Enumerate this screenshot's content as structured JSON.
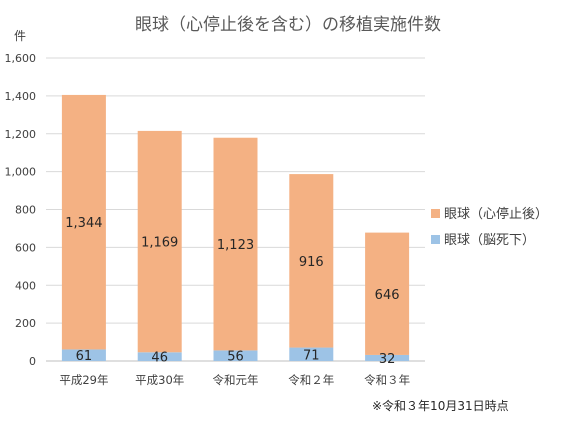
{
  "chart_data": {
    "type": "bar",
    "stacked": true,
    "title": "眼球（心停止後を含む）の移植実施件数",
    "ylabel": "件",
    "ylim": [
      0,
      1600
    ],
    "yticks": [
      0,
      200,
      400,
      600,
      800,
      1000,
      1200,
      1400,
      1600
    ],
    "ytick_labels": [
      "0",
      "200",
      "400",
      "600",
      "800",
      "1,000",
      "1,200",
      "1,400",
      "1,600"
    ],
    "categories": [
      "平成29年",
      "平成30年",
      "令和元年",
      "令和２年",
      "令和３年"
    ],
    "series": [
      {
        "name": "眼球（脳死下）",
        "color": "#9dc3e6",
        "values": [
          61,
          46,
          56,
          71,
          32
        ],
        "labels": [
          "61",
          "46",
          "56",
          "71",
          "32"
        ]
      },
      {
        "name": "眼球（心停止後）",
        "color": "#f4b183",
        "values": [
          1344,
          1169,
          1123,
          916,
          646
        ],
        "labels": [
          "1,344",
          "1,169",
          "1,123",
          "916",
          "646"
        ]
      }
    ],
    "legend": {
      "placement": "right",
      "order": [
        "眼球（心停止後）",
        "眼球（脳死下）"
      ]
    },
    "grid": true,
    "note": "※令和３年10月31日時点"
  }
}
